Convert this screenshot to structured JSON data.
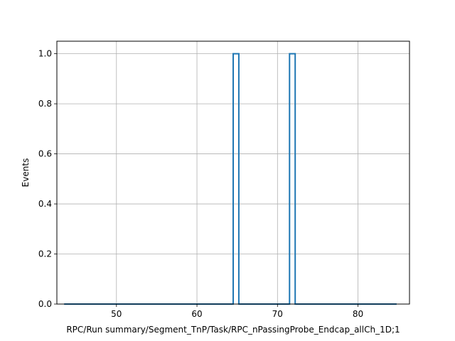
{
  "chart_data": {
    "type": "histogram-step",
    "title": "",
    "xlabel": "RPC/Run summary/Segment_TnP/Task/RPC_nPassingProbe_Endcap_allCh_1D;1",
    "ylabel": "Events",
    "xlim": [
      42.6,
      86.4
    ],
    "ylim": [
      0.0,
      1.05
    ],
    "grid": true,
    "color": "#1f77b4",
    "x_ticks": [
      50,
      60,
      70,
      80
    ],
    "y_ticks": [
      0.0,
      0.2,
      0.4,
      0.6,
      0.8,
      1.0
    ],
    "x_tick_labels": [
      "50",
      "60",
      "70",
      "80"
    ],
    "y_tick_labels": [
      "0.0",
      "0.2",
      "0.4",
      "0.6",
      "0.8",
      "1.0"
    ],
    "bin_start": 43.5,
    "bin_width": 0.7,
    "values": [
      0,
      0,
      0,
      0,
      0,
      0,
      0,
      0,
      0,
      0,
      0,
      0,
      0,
      0,
      0,
      0,
      0,
      0,
      0,
      0,
      0,
      0,
      0,
      0,
      0,
      0,
      0,
      0,
      0,
      0,
      1,
      0,
      0,
      0,
      0,
      0,
      0,
      0,
      0,
      0,
      1,
      0,
      0,
      0,
      0,
      0,
      0,
      0,
      0,
      0,
      0,
      0,
      0,
      0,
      0,
      0,
      0,
      0,
      0
    ]
  }
}
